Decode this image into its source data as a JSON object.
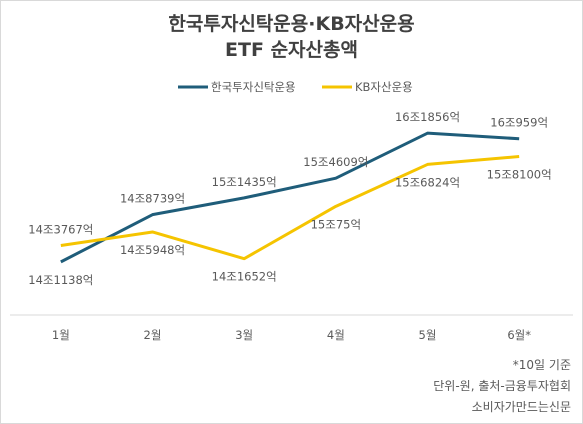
{
  "chart_data": {
    "type": "line",
    "title": "한국투자신탁운용·KB자산운용",
    "subtitle": "ETF 순자산총액",
    "categories": [
      "1월",
      "2월",
      "3월",
      "4월",
      "5월",
      "6월*"
    ],
    "series": [
      {
        "name": "한국투자신탁운용",
        "color": "#1f5d7a",
        "values": [
          141138,
          148739,
          151435,
          154609,
          161856,
          160959
        ],
        "labels": [
          "14조1138억",
          "14조8739억",
          "15조1435억",
          "15조4609억",
          "16조1856억",
          "16조959억"
        ]
      },
      {
        "name": "KB자산운용",
        "color": "#f5c400",
        "values": [
          143767,
          145948,
          141652,
          150075,
          156824,
          158100
        ],
        "labels": [
          "14조3767억",
          "14조5948억",
          "14조1652억",
          "15조75억",
          "15조6824억",
          "15조8100억"
        ]
      }
    ],
    "y_unit": "억원",
    "ylim": [
      135000,
      168000
    ],
    "legend": "top",
    "grid": false
  },
  "notes": [
    "*10일 기준",
    "단위-원, 출처-금융투자협회",
    "소비자가만드는신문"
  ]
}
